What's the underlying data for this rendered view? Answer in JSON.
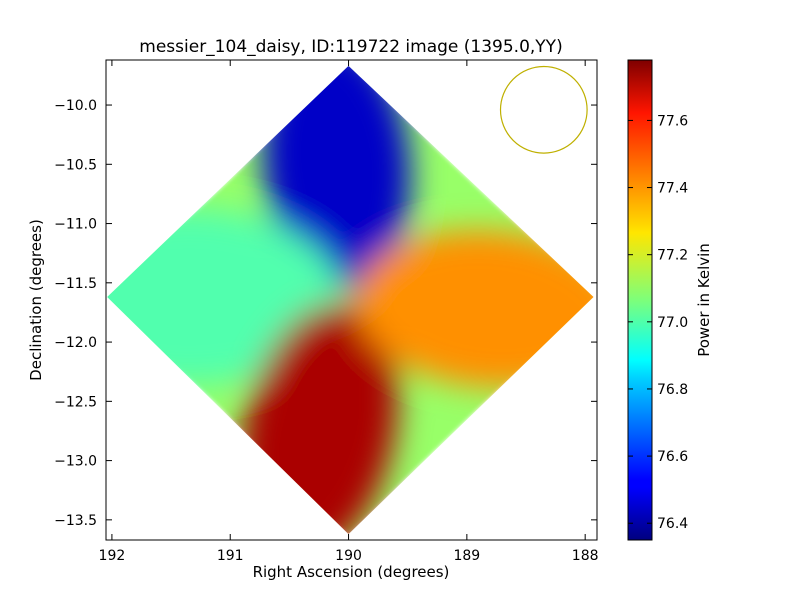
{
  "chart_data": {
    "type": "heatmap",
    "title": "messier_104_daisy, ID:119722 image (1395.0,YY)",
    "xlabel": "Right Ascension (degrees)",
    "ylabel": "Declination (degrees)",
    "colorbar_label": "Power in Kelvin",
    "colormap": "jet",
    "x_reversed": true,
    "xlim": [
      192.05,
      187.9
    ],
    "ylim": [
      -13.67,
      -9.62
    ],
    "xticks": [
      192,
      191,
      190,
      189,
      188
    ],
    "xtick_labels": [
      "192",
      "191",
      "190",
      "189",
      "188"
    ],
    "yticks": [
      -10.0,
      -10.5,
      -11.0,
      -11.5,
      -12.0,
      -12.5,
      -13.0,
      -13.5
    ],
    "ytick_labels": [
      "−10.0",
      "−10.5",
      "−11.0",
      "−11.5",
      "−12.0",
      "−12.5",
      "−13.0",
      "−13.5"
    ],
    "clim": [
      76.35,
      77.78
    ],
    "cticks": [
      76.4,
      76.6,
      76.8,
      77.0,
      77.2,
      77.4,
      77.6
    ],
    "ctick_labels": [
      "76.4",
      "76.6",
      "76.8",
      "77.0",
      "77.2",
      "77.4",
      "77.6"
    ],
    "map_center": {
      "ra": 190.0,
      "dec": -11.62
    },
    "map_corners": {
      "north": {
        "ra": 190.0,
        "dec": -9.67
      },
      "east": {
        "ra": 192.04,
        "dec": -11.62
      },
      "south": {
        "ra": 190.0,
        "dec": -13.62
      },
      "west": {
        "ra": 187.93,
        "dec": -11.62
      }
    },
    "lobes": [
      {
        "name": "north",
        "center": {
          "ra": 190.1,
          "dec": -10.5
        },
        "level": 76.45
      },
      {
        "name": "east",
        "center": {
          "ra": 191.35,
          "dec": -11.62
        },
        "level": 77.0
      },
      {
        "name": "south",
        "center": {
          "ra": 190.25,
          "dec": -12.75
        },
        "level": 77.72
      },
      {
        "name": "west",
        "center": {
          "ra": 188.8,
          "dec": -11.72
        },
        "level": 77.4
      }
    ],
    "background_level": 77.1,
    "beam": {
      "ra": 188.35,
      "dec": -10.04,
      "radius_deg": 0.365,
      "color": "#bfb000"
    }
  }
}
